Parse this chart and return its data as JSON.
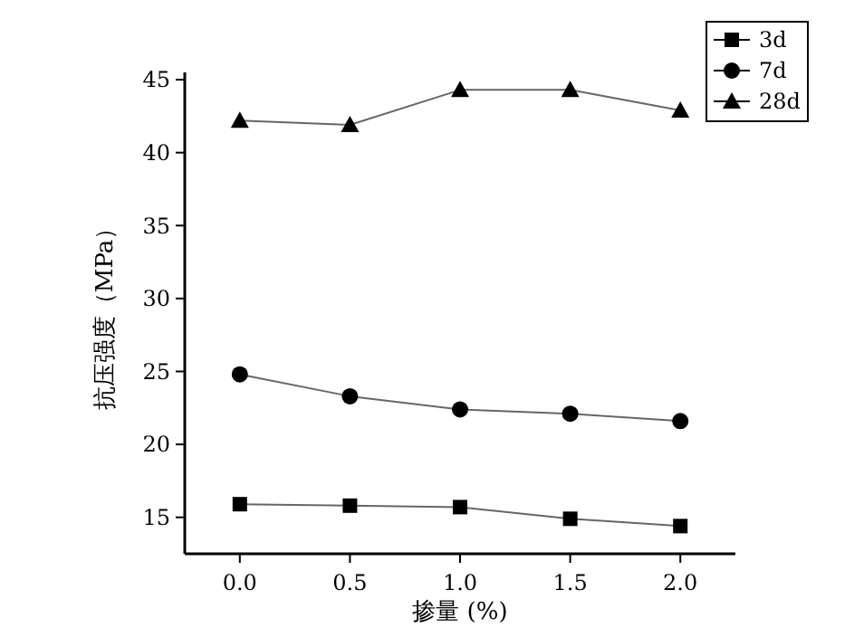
{
  "chart_data": {
    "type": "line",
    "xlabel": "掺量 (%)",
    "ylabel": "抗压强度（MPa）",
    "x": [
      0,
      0.5,
      1,
      1.5,
      2
    ],
    "series": [
      {
        "name": "3d",
        "color": "#000000",
        "marker": "square",
        "values": [
          15.9,
          15.8,
          15.7,
          14.9,
          14.4
        ]
      },
      {
        "name": "7d",
        "color": "#000000",
        "marker": "circle",
        "values": [
          24.8,
          23.3,
          22.4,
          22.1,
          21.6
        ]
      },
      {
        "name": "28d",
        "color": "#000000",
        "marker": "triangle",
        "values": [
          42.2,
          41.9,
          44.3,
          44.3,
          42.9
        ]
      }
    ],
    "xlim": [
      -0.25,
      2.25
    ],
    "xticks": [
      {
        "value": 0,
        "label": "0.0"
      },
      {
        "value": 0.5,
        "label": "0.5"
      },
      {
        "value": 1,
        "label": "1.0"
      },
      {
        "value": 1.5,
        "label": "1.5"
      },
      {
        "value": 2,
        "label": "2.0"
      }
    ],
    "ylim": [
      12.5,
      45.5
    ],
    "yticks": [
      15,
      20,
      25,
      30,
      35,
      40,
      45
    ],
    "legend": "top right",
    "grid": false
  }
}
